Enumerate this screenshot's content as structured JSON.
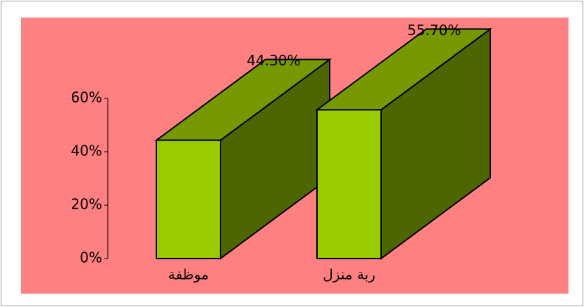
{
  "chart_data": {
    "type": "bar3d",
    "categories": [
      "موظفة",
      "ربة منزل"
    ],
    "values": [
      44.3,
      55.7
    ],
    "value_labels": [
      "44.30%",
      "55.70%"
    ],
    "color": "#99cc00",
    "background": "#ff8080",
    "ylim": [
      0,
      60
    ],
    "yticks": [
      {
        "value": 0,
        "label": "0%"
      },
      {
        "value": 20,
        "label": "20%"
      },
      {
        "value": 40,
        "label": "40%"
      },
      {
        "value": 60,
        "label": "60%"
      }
    ]
  }
}
